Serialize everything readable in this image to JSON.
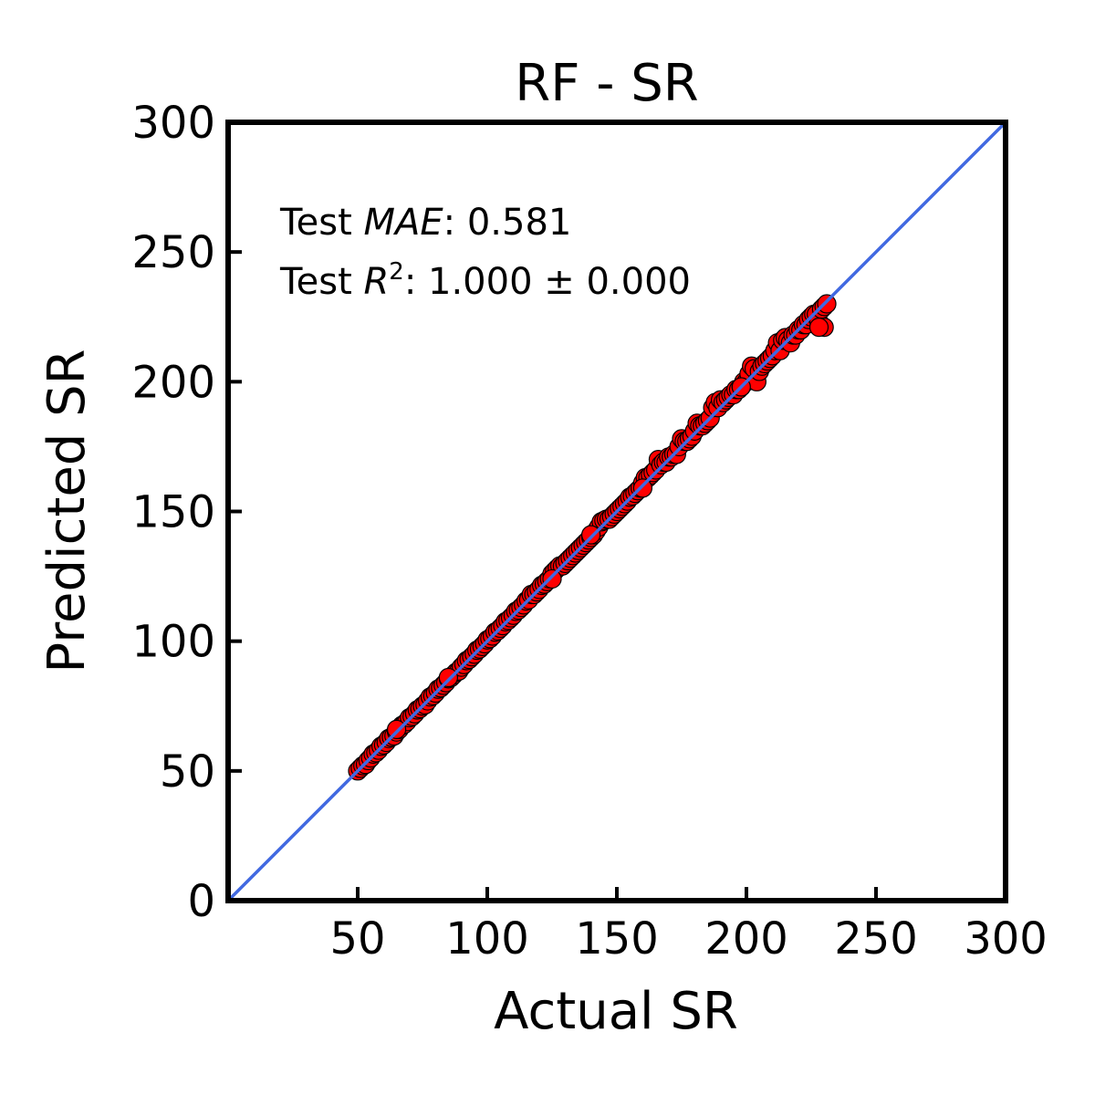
{
  "chart_data": {
    "type": "scatter",
    "title": "RF - SR",
    "xlabel": "Actual SR",
    "ylabel": "Predicted SR",
    "xlim": [
      0,
      300
    ],
    "ylim": [
      0,
      300
    ],
    "xticks": [
      50,
      100,
      150,
      200,
      250,
      300
    ],
    "yticks": [
      0,
      50,
      100,
      150,
      200,
      250,
      300
    ],
    "grid": false,
    "annotations": {
      "mae_prefix": "Test ",
      "mae_metric": "MAE",
      "mae_value": ": 0.581",
      "r2_prefix": "Test ",
      "r2_metric": "R",
      "r2_power": "2",
      "r2_value": ": 1.000 ± 0.000"
    },
    "reference_line": {
      "from": [
        0,
        0
      ],
      "to": [
        300,
        300
      ],
      "color": "#4169E1"
    },
    "colors": {
      "points": "#FF0000",
      "point_edge": "#000000",
      "line": "#4169E1"
    },
    "points": [
      [
        50,
        50
      ],
      [
        51,
        51
      ],
      [
        52,
        52
      ],
      [
        53,
        52.5
      ],
      [
        54,
        54
      ],
      [
        55,
        55
      ],
      [
        56,
        56.5
      ],
      [
        57,
        57
      ],
      [
        58,
        58
      ],
      [
        59,
        59.5
      ],
      [
        60,
        60
      ],
      [
        61,
        61
      ],
      [
        62,
        62.5
      ],
      [
        63,
        63
      ],
      [
        64,
        63.5
      ],
      [
        65,
        65
      ],
      [
        66,
        66
      ],
      [
        67,
        67.5
      ],
      [
        68,
        68
      ],
      [
        69,
        69
      ],
      [
        70,
        70.5
      ],
      [
        71,
        71
      ],
      [
        72,
        72
      ],
      [
        73,
        73.5
      ],
      [
        74,
        74
      ],
      [
        75,
        75
      ],
      [
        76,
        75.5
      ],
      [
        77,
        77
      ],
      [
        78,
        78.5
      ],
      [
        79,
        79
      ],
      [
        80,
        80
      ],
      [
        81,
        81.5
      ],
      [
        82,
        82
      ],
      [
        83,
        83
      ],
      [
        84,
        84
      ],
      [
        85,
        85.5
      ],
      [
        86,
        86
      ],
      [
        87,
        87
      ],
      [
        88,
        88
      ],
      [
        89,
        88.5
      ],
      [
        90,
        90
      ],
      [
        91,
        91
      ],
      [
        92,
        92.5
      ],
      [
        93,
        93
      ],
      [
        94,
        94
      ],
      [
        95,
        95
      ],
      [
        96,
        96.5
      ],
      [
        97,
        97
      ],
      [
        98,
        98
      ],
      [
        99,
        99
      ],
      [
        100,
        100.5
      ],
      [
        101,
        101
      ],
      [
        102,
        102
      ],
      [
        103,
        103.5
      ],
      [
        104,
        104
      ],
      [
        105,
        105
      ],
      [
        106,
        106
      ],
      [
        107,
        107.5
      ],
      [
        108,
        108
      ],
      [
        109,
        109
      ],
      [
        110,
        110
      ],
      [
        111,
        111.5
      ],
      [
        112,
        112
      ],
      [
        113,
        113
      ],
      [
        114,
        114
      ],
      [
        115,
        115.5
      ],
      [
        116,
        116
      ],
      [
        117,
        118
      ],
      [
        118,
        118
      ],
      [
        119,
        119
      ],
      [
        120,
        120
      ],
      [
        121,
        121.5
      ],
      [
        122,
        122
      ],
      [
        123,
        123
      ],
      [
        124,
        124
      ],
      [
        125,
        126
      ],
      [
        126,
        127
      ],
      [
        127,
        128
      ],
      [
        128,
        129
      ],
      [
        129,
        129
      ],
      [
        130,
        130
      ],
      [
        131,
        131
      ],
      [
        132,
        132
      ],
      [
        133,
        133
      ],
      [
        134,
        134
      ],
      [
        135,
        135
      ],
      [
        136,
        136
      ],
      [
        137,
        137
      ],
      [
        138,
        138
      ],
      [
        139,
        139
      ],
      [
        140,
        140
      ],
      [
        141,
        141
      ],
      [
        142,
        142.5
      ],
      [
        143,
        144
      ],
      [
        144,
        146
      ],
      [
        145,
        146.5
      ],
      [
        146,
        147
      ],
      [
        147,
        147
      ],
      [
        148,
        148
      ],
      [
        149,
        149
      ],
      [
        150,
        150
      ],
      [
        151,
        151
      ],
      [
        152,
        152
      ],
      [
        153,
        153
      ],
      [
        154,
        154
      ],
      [
        155,
        155.5
      ],
      [
        156,
        156
      ],
      [
        157,
        157
      ],
      [
        158,
        158
      ],
      [
        159,
        159
      ],
      [
        160,
        161
      ],
      [
        161,
        163
      ],
      [
        162,
        163
      ],
      [
        163,
        164
      ],
      [
        164,
        165
      ],
      [
        165,
        166
      ],
      [
        166,
        170
      ],
      [
        167,
        168
      ],
      [
        168,
        169
      ],
      [
        169,
        169
      ],
      [
        170,
        171
      ],
      [
        171,
        171
      ],
      [
        172,
        172
      ],
      [
        173,
        172
      ],
      [
        174,
        175
      ],
      [
        175,
        178
      ],
      [
        176,
        177
      ],
      [
        177,
        177
      ],
      [
        178,
        178
      ],
      [
        179,
        179
      ],
      [
        180,
        181
      ],
      [
        181,
        184
      ],
      [
        182,
        183
      ],
      [
        183,
        183
      ],
      [
        184,
        184
      ],
      [
        185,
        185
      ],
      [
        186,
        186
      ],
      [
        187,
        190
      ],
      [
        188,
        192
      ],
      [
        189,
        190
      ],
      [
        190,
        193
      ],
      [
        191,
        192
      ],
      [
        192,
        193
      ],
      [
        193,
        194
      ],
      [
        194,
        195
      ],
      [
        195,
        195
      ],
      [
        196,
        197
      ],
      [
        197,
        197
      ],
      [
        198,
        198
      ],
      [
        199,
        200
      ],
      [
        200,
        200
      ],
      [
        201,
        203
      ],
      [
        202,
        206
      ],
      [
        203,
        205
      ],
      [
        204,
        200
      ],
      [
        205,
        204
      ],
      [
        206,
        206
      ],
      [
        207,
        207
      ],
      [
        208,
        208
      ],
      [
        209,
        209
      ],
      [
        210,
        210
      ],
      [
        211,
        212
      ],
      [
        212,
        215
      ],
      [
        213,
        212
      ],
      [
        214,
        216
      ],
      [
        215,
        217
      ],
      [
        216,
        216
      ],
      [
        217,
        215
      ],
      [
        218,
        218
      ],
      [
        219,
        218
      ],
      [
        220,
        220
      ],
      [
        221,
        220
      ],
      [
        222,
        222
      ],
      [
        223,
        222
      ],
      [
        224,
        224
      ],
      [
        225,
        225
      ],
      [
        226,
        226
      ],
      [
        227,
        226
      ],
      [
        228,
        223
      ],
      [
        229,
        228
      ],
      [
        230,
        229
      ],
      [
        231,
        230
      ],
      [
        230,
        221
      ],
      [
        228,
        221
      ],
      [
        198,
        198
      ],
      [
        160,
        159
      ],
      [
        140,
        141
      ],
      [
        125,
        124
      ],
      [
        85,
        86
      ],
      [
        65,
        66
      ]
    ]
  }
}
